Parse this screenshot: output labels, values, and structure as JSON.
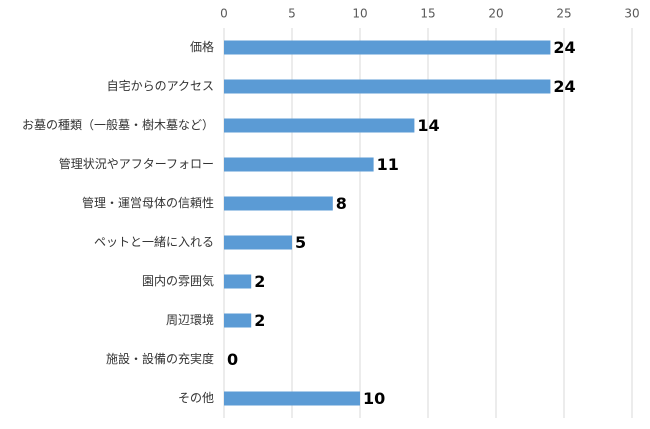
{
  "chart_data": {
    "type": "bar",
    "orientation": "horizontal",
    "categories": [
      "価格",
      "自宅からのアクセス",
      "お墓の種類（一般墓・樹木墓など）",
      "管理状況やアフターフォロー",
      "管理・運営母体の信頼性",
      "ペットと一緒に入れる",
      "園内の雰囲気",
      "周辺環境",
      "施設・設備の充実度",
      "その他"
    ],
    "values": [
      24,
      24,
      14,
      11,
      8,
      5,
      2,
      2,
      0,
      10
    ],
    "color": "#5b9bd5",
    "xlim": [
      0,
      30
    ],
    "xticks": [
      0,
      5,
      10,
      15,
      20,
      25,
      30
    ],
    "grid": true
  }
}
